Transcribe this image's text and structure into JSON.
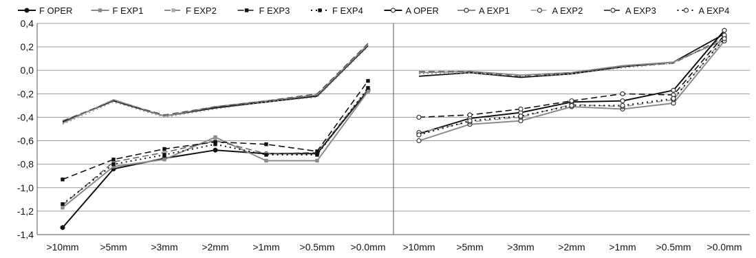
{
  "chart_data": {
    "type": "line",
    "title": "",
    "xlabel": "",
    "ylabel": "",
    "ylim": [
      -1.4,
      0.4
    ],
    "yticks": [
      "0,4",
      "0,2",
      "0,0",
      "-0,2",
      "-0,4",
      "-0,6",
      "-0,8",
      "-1,0",
      "-1,2",
      "-1,4"
    ],
    "grid": true,
    "legend_position": "top",
    "legend": [
      "F OPER",
      "F EXP1",
      "F EXP2",
      "F EXP3",
      "F EXP4",
      "A OPER",
      "A EXP1",
      "A EXP2",
      "A EXP3",
      "A EXP4"
    ],
    "panels": [
      {
        "categories": [
          ">10mm",
          ">5mm",
          ">3mm",
          ">2mm",
          ">1mm",
          ">0.5mm",
          ">0.0mm"
        ],
        "series": [
          {
            "style": "upper-solid",
            "color": "#111111",
            "values": [
              -0.44,
              -0.26,
              -0.39,
              -0.32,
              -0.27,
              -0.22,
              0.21
            ]
          },
          {
            "style": "upper-gray",
            "color": "#8a8a8a",
            "values": [
              -0.45,
              -0.25,
              -0.39,
              -0.31,
              -0.26,
              -0.21,
              0.22
            ]
          },
          {
            "style": "upper-dash",
            "color": "#555555",
            "values": [
              -0.43,
              -0.26,
              -0.38,
              -0.31,
              -0.26,
              -0.2,
              0.23
            ]
          },
          {
            "style": "upper-gray-dot",
            "color": "#9a9a9a",
            "values": [
              -0.46,
              -0.27,
              -0.4,
              -0.33,
              -0.27,
              -0.23,
              0.2
            ]
          },
          {
            "name": "F OPER",
            "values": [
              -1.34,
              -0.84,
              -0.75,
              -0.68,
              -0.71,
              -0.71,
              -0.17
            ]
          },
          {
            "name": "F EXP1",
            "values": [
              -1.17,
              -0.82,
              -0.76,
              -0.57,
              -0.77,
              -0.77,
              -0.18
            ]
          },
          {
            "name": "F EXP2",
            "values": [
              -1.15,
              -0.78,
              -0.7,
              -0.6,
              -0.71,
              -0.7,
              -0.16
            ]
          },
          {
            "name": "F EXP3",
            "values": [
              -0.93,
              -0.76,
              -0.67,
              -0.61,
              -0.63,
              -0.69,
              -0.09
            ]
          },
          {
            "name": "F EXP4",
            "values": [
              -1.14,
              -0.8,
              -0.72,
              -0.63,
              -0.72,
              -0.72,
              -0.15
            ]
          }
        ]
      },
      {
        "categories": [
          ">10mm",
          ">5mm",
          ">3mm",
          ">2mm",
          ">1mm",
          ">0.5mm",
          ">0.0mm"
        ],
        "series": [
          {
            "style": "upper-solid",
            "color": "#111111",
            "values": [
              -0.05,
              -0.02,
              -0.06,
              -0.03,
              0.03,
              0.07,
              0.31
            ]
          },
          {
            "style": "upper-gray",
            "color": "#8a8a8a",
            "values": [
              -0.02,
              -0.01,
              -0.04,
              -0.02,
              0.04,
              0.07,
              0.26
            ]
          },
          {
            "style": "upper-dash",
            "color": "#555555",
            "values": [
              -0.01,
              -0.01,
              -0.05,
              -0.02,
              0.03,
              0.06,
              0.28
            ]
          },
          {
            "style": "upper-gray-dot",
            "color": "#9a9a9a",
            "values": [
              -0.03,
              -0.02,
              -0.05,
              -0.03,
              0.02,
              0.06,
              0.27
            ]
          },
          {
            "name": "A OPER",
            "values": [
              -0.54,
              -0.41,
              -0.36,
              -0.27,
              -0.26,
              -0.17,
              0.34
            ]
          },
          {
            "name": "A EXP1",
            "values": [
              -0.6,
              -0.46,
              -0.43,
              -0.31,
              -0.33,
              -0.28,
              0.25
            ]
          },
          {
            "name": "A EXP2",
            "values": [
              -0.53,
              -0.44,
              -0.4,
              -0.29,
              -0.31,
              -0.25,
              0.28
            ]
          },
          {
            "name": "A EXP3",
            "values": [
              -0.4,
              -0.38,
              -0.33,
              -0.26,
              -0.2,
              -0.21,
              0.3
            ]
          },
          {
            "name": "A EXP4",
            "values": [
              -0.55,
              -0.43,
              -0.39,
              -0.3,
              -0.3,
              -0.24,
              0.27
            ]
          }
        ]
      }
    ]
  }
}
